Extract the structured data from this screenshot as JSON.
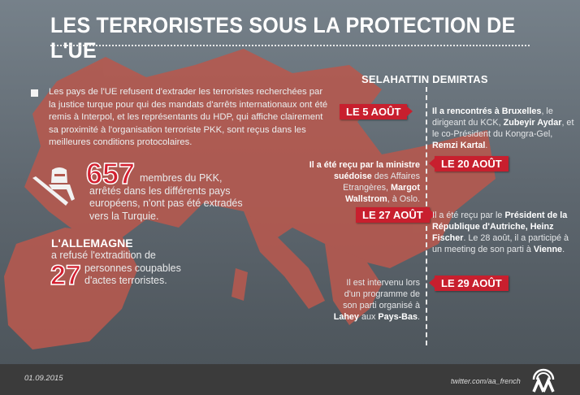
{
  "header": {
    "title": "LES TERRORISTES SOUS LA PROTECTION DE L'UE"
  },
  "intro": {
    "text": "Les pays de l'UE refusent d'extrader les terroristes recherchées par la justice turque pour qui des mandats d'arrêts internationaux ont été remis à Interpol, et les représentants du HDP, qui affiche clairement sa proximité à l'organisation terroriste PKK, sont reçus dans les meilleures conditions protocolaires."
  },
  "stat1": {
    "number": "657",
    "text": "membres du PKK,",
    "text2": "arrêtés dans les différents pays européens, n'ont pas été extradés vers la Turquie.",
    "icon": "armed-militant-icon"
  },
  "stat2": {
    "heading": "L'ALLEMAGNE",
    "line": "a refusé l'extradition de",
    "number": "27",
    "text": "personnes coupables",
    "text2": "d'actes terroristes."
  },
  "timeline": {
    "person": "SELAHATTIN DEMIRTAS",
    "events": [
      {
        "date": "LE 5 AOÛT",
        "parts": [
          [
            "b",
            "Il a rencontrés à Bruxelles"
          ],
          [
            "t",
            ", le dirigeant du KCK, "
          ],
          [
            "b",
            "Zubeyir Aydar"
          ],
          [
            "t",
            ", et le co-Président du Kongra-Gel, "
          ],
          [
            "b",
            "Remzi Kartal"
          ],
          [
            "t",
            "."
          ]
        ]
      },
      {
        "date": "LE 20 AOÛT",
        "parts": [
          [
            "b",
            "Il a été reçu par la ministre suédoise"
          ],
          [
            "t",
            " des Affaires Etrangères, "
          ],
          [
            "b",
            "Margot Wallstrom"
          ],
          [
            "t",
            ", à Oslo."
          ]
        ]
      },
      {
        "date": "LE 27 AOÛT",
        "parts": [
          [
            "t",
            "Il a été reçu par le "
          ],
          [
            "b",
            "Président de la République d'Autriche, Heinz Fischer"
          ],
          [
            "t",
            ". Le 28 août, il a participé à un meeting de son parti à "
          ],
          [
            "b",
            "Vienne"
          ],
          [
            "t",
            "."
          ]
        ]
      },
      {
        "date": "LE 29 AOÛT",
        "parts": [
          [
            "t",
            "Il est intervenu lors d'un programme de son parti organisé à "
          ],
          [
            "b",
            "Lahey"
          ],
          [
            "t",
            " aux "
          ],
          [
            "b",
            "Pays-Bas"
          ],
          [
            "t",
            "."
          ]
        ]
      }
    ]
  },
  "footer": {
    "date": "01.09.2015",
    "twitter": "twitter.com/aa_french",
    "logo_text": "AA"
  },
  "colors": {
    "accent": "#c81f2e",
    "map": "#b85a55",
    "footer": "#3b3b3b"
  }
}
